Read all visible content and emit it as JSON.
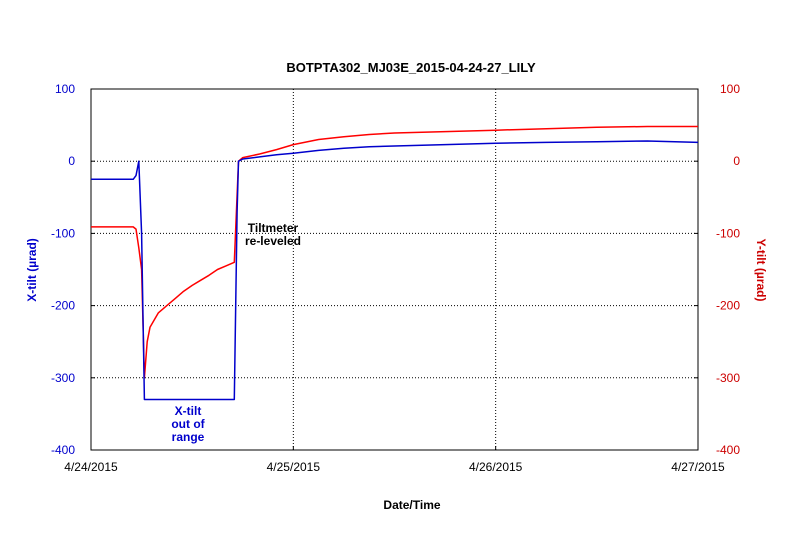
{
  "chart_data": {
    "type": "line",
    "title": "BOTPTA302_MJ03E_2015-04-24-27_LILY",
    "xlabel": "Date/Time",
    "ylabel_left": "X-tilt (µrad)",
    "ylabel_right": "Y-tilt (µrad)",
    "xlim": [
      "2015-04-24T00:00",
      "2015-04-27T00:00"
    ],
    "x_ticks": [
      "4/24/2015",
      "4/25/2015",
      "4/26/2015",
      "4/27/2015"
    ],
    "ylim_left": [
      -400,
      100
    ],
    "ylim_right": [
      -400,
      100
    ],
    "y_ticks_left": [
      "100",
      "0",
      "-100",
      "-200",
      "-300",
      "-400"
    ],
    "y_ticks_right": [
      "100",
      "0",
      "-100",
      "-200",
      "-300",
      "-400"
    ],
    "grid": true,
    "colors": {
      "x_tilt": "#0000cc",
      "y_tilt": "#ff0000",
      "axis_left": "#0000cc",
      "axis_right": "#cc0000"
    },
    "series": [
      {
        "axis": "left",
        "x": [
          "2015-04-24T00:00",
          "2015-04-24T04:00",
          "2015-04-24T05:00",
          "2015-04-24T05:20",
          "2015-04-24T05:40",
          "2015-04-24T06:00",
          "2015-04-24T06:20",
          "2015-04-24T06:40",
          "2015-04-24T07:00",
          "2015-04-24T08:00",
          "2015-04-24T10:00",
          "2015-04-24T12:00",
          "2015-04-24T14:00",
          "2015-04-24T16:00",
          "2015-04-24T17:00",
          "2015-04-24T17:20",
          "2015-04-24T17:30",
          "2015-04-24T18:00",
          "2015-04-24T20:00",
          "2015-04-24T22:00",
          "2015-04-25T00:00",
          "2015-04-25T03:00",
          "2015-04-25T06:00",
          "2015-04-25T09:00",
          "2015-04-25T12:00",
          "2015-04-25T18:00",
          "2015-04-26T00:00",
          "2015-04-26T06:00",
          "2015-04-26T12:00",
          "2015-04-26T18:00",
          "2015-04-27T00:00"
        ],
        "y": [
          -25,
          -25,
          -25,
          -20,
          0,
          -100,
          -330,
          -330,
          -330,
          -330,
          -330,
          -330,
          -330,
          -330,
          -330,
          -70,
          0,
          3,
          6,
          9,
          11,
          15,
          18,
          20,
          21,
          23,
          25,
          26,
          27,
          28,
          26
        ]
      },
      {
        "axis": "right",
        "x": [
          "2015-04-24T00:00",
          "2015-04-24T04:00",
          "2015-04-24T05:00",
          "2015-04-24T05:20",
          "2015-04-24T05:40",
          "2015-04-24T06:00",
          "2015-04-24T06:20",
          "2015-04-24T06:40",
          "2015-04-24T07:00",
          "2015-04-24T08:00",
          "2015-04-24T09:00",
          "2015-04-24T10:00",
          "2015-04-24T11:00",
          "2015-04-24T12:00",
          "2015-04-24T13:00",
          "2015-04-24T14:00",
          "2015-04-24T15:00",
          "2015-04-24T16:00",
          "2015-04-24T17:00",
          "2015-04-24T17:30",
          "2015-04-24T18:00",
          "2015-04-24T20:00",
          "2015-04-24T22:00",
          "2015-04-25T00:00",
          "2015-04-25T03:00",
          "2015-04-25T06:00",
          "2015-04-25T09:00",
          "2015-04-25T12:00",
          "2015-04-25T18:00",
          "2015-04-26T00:00",
          "2015-04-26T06:00",
          "2015-04-26T12:00",
          "2015-04-26T18:00",
          "2015-04-27T00:00"
        ],
        "y": [
          -91,
          -91,
          -91,
          -94,
          -120,
          -150,
          -300,
          -250,
          -230,
          -210,
          -200,
          -190,
          -180,
          -172,
          -165,
          -158,
          -150,
          -145,
          -140,
          0,
          5,
          10,
          16,
          23,
          30,
          34,
          37,
          39,
          41,
          43,
          45,
          47,
          48,
          48
        ]
      }
    ],
    "annotations": [
      {
        "lines": [
          "X-tilt",
          "out of",
          "range"
        ],
        "color": "#0000cc"
      },
      {
        "lines": [
          "Tiltmeter",
          "re-leveled"
        ],
        "color": "#000000"
      }
    ]
  }
}
